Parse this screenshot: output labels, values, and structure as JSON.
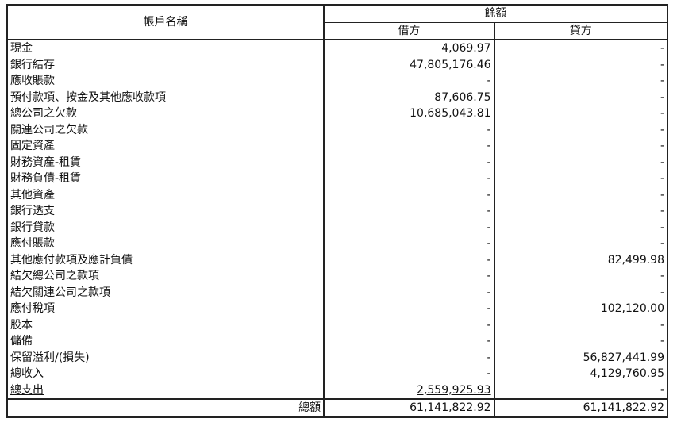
{
  "header": {
    "account_name": "帳戶名稱",
    "balance": "餘額",
    "debit": "借方",
    "credit": "貸方"
  },
  "rows": [
    {
      "name": "現金",
      "debit": "4,069.97",
      "credit": "-"
    },
    {
      "name": "銀行結存",
      "debit": "47,805,176.46",
      "credit": "-"
    },
    {
      "name": "應收賬款",
      "debit": "-",
      "credit": "-"
    },
    {
      "name": "預付款項、按金及其他應收款項",
      "debit": "87,606.75",
      "credit": "-"
    },
    {
      "name": "總公司之欠款",
      "debit": "10,685,043.81",
      "credit": "-"
    },
    {
      "name": "關連公司之欠款",
      "debit": "-",
      "credit": "-"
    },
    {
      "name": "固定資產",
      "debit": "-",
      "credit": "-"
    },
    {
      "name": "財務資產-租賃",
      "debit": "-",
      "credit": "-"
    },
    {
      "name": "財務負債-租賃",
      "debit": "-",
      "credit": "-"
    },
    {
      "name": "其他資產",
      "debit": "-",
      "credit": "-"
    },
    {
      "name": "銀行透支",
      "debit": "-",
      "credit": "-"
    },
    {
      "name": "銀行貸款",
      "debit": "-",
      "credit": "-"
    },
    {
      "name": "應付賬款",
      "debit": "-",
      "credit": "-"
    },
    {
      "name": "其他應付款項及應計負債",
      "debit": "-",
      "credit": "82,499.98"
    },
    {
      "name": "結欠總公司之款項",
      "debit": "-",
      "credit": "-"
    },
    {
      "name": "結欠關連公司之款項",
      "debit": "-",
      "credit": "-"
    },
    {
      "name": "應付稅項",
      "debit": "-",
      "credit": "102,120.00"
    },
    {
      "name": "股本",
      "debit": "-",
      "credit": "-"
    },
    {
      "name": "儲備",
      "debit": "-",
      "credit": "-"
    },
    {
      "name": "保留溢利/(損失)",
      "debit": "-",
      "credit": "56,827,441.99"
    },
    {
      "name": "總收入",
      "debit": "-",
      "credit": "4,129,760.95"
    },
    {
      "name": "總支出",
      "debit": "2,559,925.93",
      "credit": "-"
    }
  ],
  "total": {
    "label": "總額",
    "debit": "61,141,822.92",
    "credit": "61,141,822.92"
  }
}
